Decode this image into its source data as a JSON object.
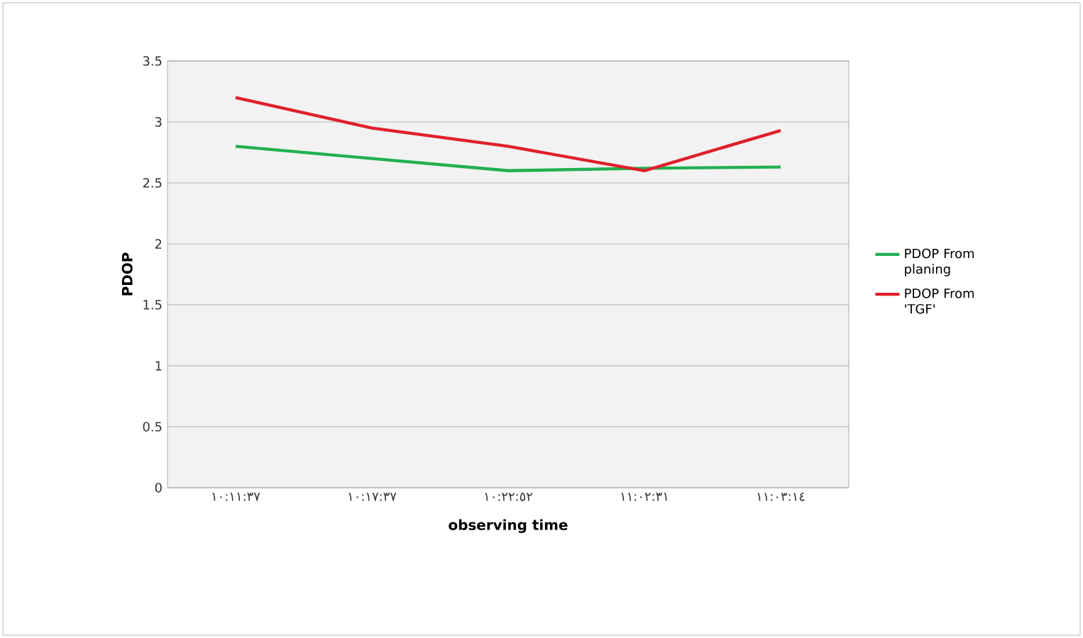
{
  "chart_data": {
    "type": "line",
    "xlabel": "observing time",
    "ylabel": "PDOP",
    "categories": [
      "١٠:١١:٣٧",
      "١٠:١٧:٣٧",
      "١٠:٢٢:٥٢",
      "١١:٠٢:٣١",
      "١١:٠٣:١٤"
    ],
    "series": [
      {
        "name": "PDOP From planing",
        "color": "#22b050",
        "values": [
          2.8,
          2.7,
          2.6,
          2.62,
          2.63
        ]
      },
      {
        "name": "PDOP From 'TGF'",
        "color": "#e0202a",
        "values": [
          3.2,
          2.95,
          2.8,
          2.6,
          2.93
        ]
      }
    ],
    "ylim": [
      0,
      3.5
    ],
    "yticks": [
      0,
      0.5,
      1,
      1.5,
      2,
      2.5,
      3,
      3.5
    ],
    "grid": "y",
    "legend": "right",
    "marker": "none",
    "line_style": "solid"
  }
}
